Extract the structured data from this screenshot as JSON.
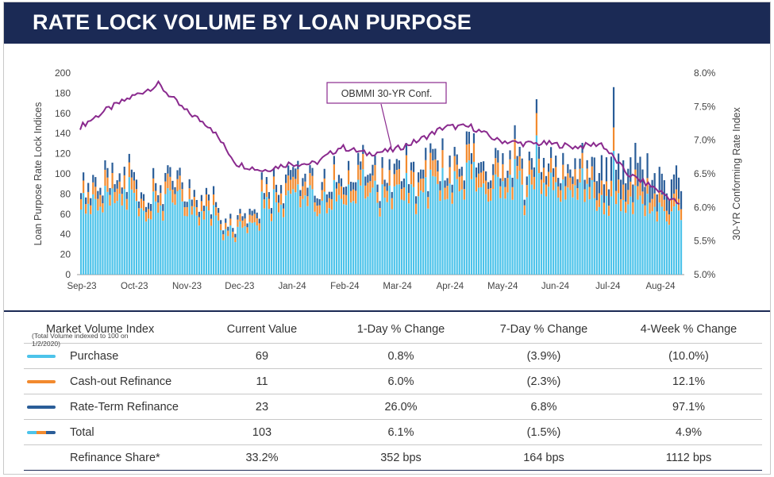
{
  "title": "RATE LOCK VOLUME BY LOAN PURPOSE",
  "colors": {
    "header": "#1b2a55",
    "purchase": "#4cc3ea",
    "cashout": "#f28a2e",
    "rateterm": "#2a5d98",
    "rate_line": "#8a2a8e"
  },
  "chart_data": {
    "type": "bar",
    "stacked": true,
    "ylabel": "Loan Purpose Rate Lock Indices",
    "y2label": "30-YR Conforming Rate Index",
    "ylim": [
      0,
      200
    ],
    "y2lim": [
      5.0,
      8.0
    ],
    "yticks": [
      "0",
      "20",
      "40",
      "60",
      "80",
      "100",
      "120",
      "140",
      "160",
      "180",
      "200"
    ],
    "y2ticks": [
      "5.0%",
      "5.5%",
      "6.0%",
      "6.5%",
      "7.0%",
      "7.5%",
      "8.0%"
    ],
    "xticks": [
      "Sep-23",
      "Oct-23",
      "Nov-23",
      "Dec-23",
      "Jan-24",
      "Feb-24",
      "Mar-24",
      "Apr-24",
      "May-24",
      "Jun-24",
      "Jul-24",
      "Aug-24"
    ],
    "grid": false,
    "annotation": "OBMMI 30-YR Conf.",
    "weekly_totals": [
      96,
      100,
      98,
      103,
      95,
      110,
      104,
      86,
      91,
      98,
      101,
      100,
      86,
      90,
      84,
      78,
      62,
      59,
      68,
      68,
      78,
      98,
      98,
      103,
      117,
      102,
      100,
      95,
      99,
      104,
      96,
      116,
      122,
      108,
      110,
      108,
      112,
      118,
      109,
      103,
      121,
      118,
      119,
      112,
      125,
      150,
      112,
      110,
      121,
      115,
      128,
      112,
      116,
      122,
      121,
      116,
      117,
      110,
      122,
      114,
      110,
      112,
      120,
      113,
      117,
      116,
      104,
      101,
      99,
      102
    ],
    "weekly_cashout_share": 0.11,
    "weekly_rateterm_share": 0.07,
    "spikes": [
      {
        "date": "May-24",
        "total": 174
      },
      {
        "date": "Jul-24",
        "total": 186
      }
    ],
    "rate_series": [
      {
        "x": "Sep-23",
        "y": 7.2
      },
      {
        "x": "Sep-23+",
        "y": 7.45
      },
      {
        "x": "Oct-23",
        "y": 7.65
      },
      {
        "x": "Oct-23+",
        "y": 7.83
      },
      {
        "x": "Nov-23",
        "y": 7.45
      },
      {
        "x": "Nov-23+",
        "y": 7.2
      },
      {
        "x": "Dec-23",
        "y": 6.65
      },
      {
        "x": "Dec-23+",
        "y": 6.55
      },
      {
        "x": "Jan-24",
        "y": 6.65
      },
      {
        "x": "Jan-24+",
        "y": 6.65
      },
      {
        "x": "Feb-24",
        "y": 6.9
      },
      {
        "x": "Feb-24+",
        "y": 6.8
      },
      {
        "x": "Mar-24",
        "y": 6.85
      },
      {
        "x": "Mar-24+",
        "y": 7.0
      },
      {
        "x": "Apr-24",
        "y": 7.2
      },
      {
        "x": "Apr-24+",
        "y": 7.2
      },
      {
        "x": "May-24",
        "y": 7.0
      },
      {
        "x": "May-24+",
        "y": 6.95
      },
      {
        "x": "Jun-24",
        "y": 6.95
      },
      {
        "x": "Jun-24+",
        "y": 6.9
      },
      {
        "x": "Jul-24",
        "y": 6.95
      },
      {
        "x": "Jul-24+",
        "y": 6.5
      },
      {
        "x": "Aug-24",
        "y": 6.3
      },
      {
        "x": "Aug-24+",
        "y": 6.05
      }
    ]
  },
  "table": {
    "header": {
      "name": "Market Volume Index",
      "subnote": "(Total Volume indexed to 100 on 1/2/2020)",
      "current": "Current Value",
      "d1": "1-Day % Change",
      "d7": "7-Day % Change",
      "w4": "4-Week % Change"
    },
    "rows": [
      {
        "name": "Purchase",
        "swatch": "#4cc3ea",
        "current": "69",
        "d1": "0.8%",
        "d7": "(3.9%)",
        "w4": "(10.0%)"
      },
      {
        "name": "Cash-out Refinance",
        "swatch": "#f28a2e",
        "current": "11",
        "d1": "6.0%",
        "d7": "(2.3%)",
        "w4": "12.1%"
      },
      {
        "name": "Rate-Term Refinance",
        "swatch": "#2a5d98",
        "current": "23",
        "d1": "26.0%",
        "d7": "6.8%",
        "w4": "97.1%"
      },
      {
        "name": "Total",
        "swatch": "multi",
        "current": "103",
        "d1": "6.1%",
        "d7": "(1.5%)",
        "w4": "4.9%"
      },
      {
        "name": "Refinance Share*",
        "swatch": "",
        "current": "33.2%",
        "d1": "352 bps",
        "d7": "164 bps",
        "w4": "1112 bps"
      }
    ]
  }
}
